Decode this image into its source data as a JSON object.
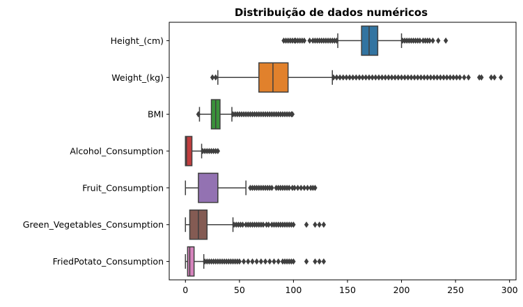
{
  "chart_data": {
    "type": "boxplot",
    "orientation": "horizontal",
    "title": "Distribuição de dados numéricos",
    "xlabel": "",
    "ylabel": "",
    "xlim": [
      -15,
      306
    ],
    "x_ticks": [
      0,
      50,
      100,
      150,
      200,
      250,
      300
    ],
    "grid": false,
    "legend": "none",
    "series": [
      {
        "name": "Height_(cm)",
        "color": "#3274a1",
        "whisker_low": 141,
        "q1": 163,
        "median": 170,
        "q3": 178,
        "whisker_high": 200,
        "outliers_low": [
          91,
          93,
          95,
          97,
          99,
          101,
          102,
          104,
          106,
          108,
          110,
          115,
          118,
          120,
          122,
          124,
          126,
          128,
          130,
          132,
          134,
          136,
          138,
          140
        ],
        "outliers_high": [
          201,
          203,
          205,
          207,
          209,
          211,
          213,
          215,
          217,
          220,
          222,
          224,
          226,
          229,
          234,
          241
        ]
      },
      {
        "name": "Weight_(kg)",
        "color": "#e1812c",
        "whisker_low": 30,
        "q1": 68,
        "median": 81,
        "q3": 95,
        "whisker_high": 136,
        "outliers_low": [
          25,
          28
        ],
        "outliers_high": [
          137,
          140,
          143,
          146,
          149,
          152,
          155,
          158,
          161,
          164,
          167,
          170,
          173,
          176,
          179,
          182,
          185,
          188,
          191,
          194,
          197,
          200,
          203,
          206,
          209,
          212,
          215,
          218,
          221,
          224,
          227,
          230,
          233,
          236,
          239,
          242,
          245,
          248,
          251,
          254,
          258,
          262,
          272,
          274,
          283,
          286,
          292
        ]
      },
      {
        "name": "BMI",
        "color": "#3a923a",
        "whisker_low": 13,
        "q1": 24,
        "median": 28,
        "q3": 32,
        "whisker_high": 43,
        "outliers_low": [
          12
        ],
        "outliers_high": [
          44,
          46,
          48,
          50,
          52,
          54,
          56,
          58,
          60,
          62,
          64,
          66,
          68,
          70,
          72,
          74,
          76,
          78,
          80,
          82,
          84,
          86,
          88,
          90,
          92,
          94,
          96,
          98,
          99
        ]
      },
      {
        "name": "Alcohol_Consumption",
        "color": "#c03d3e",
        "whisker_low": 0,
        "q1": 0,
        "median": 1,
        "q3": 6,
        "whisker_high": 15,
        "outliers_low": [],
        "outliers_high": [
          16,
          18,
          20,
          22,
          24,
          26,
          28,
          30
        ]
      },
      {
        "name": "Fruit_Consumption",
        "color": "#9372b2",
        "whisker_low": 0,
        "q1": 12,
        "median": 30,
        "q3": 30,
        "whisker_high": 56,
        "outliers_low": [],
        "outliers_high": [
          60,
          62,
          64,
          66,
          68,
          70,
          72,
          74,
          76,
          78,
          80,
          84,
          86,
          88,
          90,
          92,
          94,
          96,
          99,
          101,
          104,
          107,
          110,
          113,
          116,
          118,
          120
        ]
      },
      {
        "name": "Green_Vegetables_Consumption",
        "color": "#845b53",
        "whisker_low": 0,
        "q1": 4,
        "median": 12,
        "q3": 20,
        "whisker_high": 44,
        "outliers_low": [],
        "outliers_high": [
          45,
          47,
          49,
          51,
          53,
          56,
          58,
          60,
          62,
          64,
          66,
          68,
          70,
          72,
          75,
          77,
          80,
          82,
          84,
          86,
          88,
          90,
          92,
          94,
          96,
          98,
          100,
          112,
          120,
          124,
          128
        ]
      },
      {
        "name": "FriedPotato_Consumption",
        "color": "#d684bd",
        "whisker_low": 0,
        "q1": 2,
        "median": 4,
        "q3": 8,
        "whisker_high": 17,
        "outliers_low": [],
        "outliers_high": [
          18,
          20,
          22,
          24,
          26,
          28,
          30,
          32,
          34,
          36,
          38,
          40,
          42,
          44,
          46,
          48,
          50,
          54,
          58,
          62,
          66,
          70,
          74,
          78,
          82,
          86,
          90,
          92,
          94,
          96,
          98,
          100,
          112,
          120,
          124,
          128
        ]
      }
    ]
  }
}
